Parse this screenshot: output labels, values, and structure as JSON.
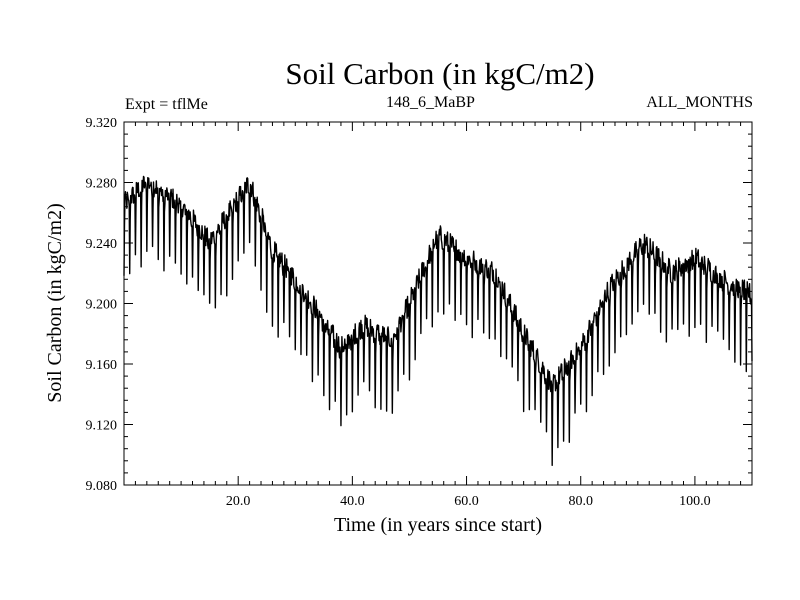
{
  "title": "Soil Carbon (in kgC/m2)",
  "expt_label": "Expt = tflMe",
  "run_label": "148_6_MaBP",
  "months_label": "ALL_MONTHS",
  "chart_data": {
    "type": "line",
    "title": "Soil Carbon (in kgC/m2)",
    "xlabel": "Time (in years since start)",
    "ylabel": "Soil Carbon (in kgC/m2)",
    "xlim": [
      0,
      110
    ],
    "ylim": [
      9.08,
      9.32
    ],
    "grid": false,
    "x_ticks": [
      20,
      40,
      60,
      80,
      100
    ],
    "x_tick_labels": [
      "20.0",
      "40.0",
      "60.0",
      "80.0",
      "100.0"
    ],
    "y_ticks": [
      9.08,
      9.12,
      9.16,
      9.2,
      9.24,
      9.28,
      9.32
    ],
    "y_tick_labels": [
      "9.080",
      "9.120",
      "9.160",
      "9.200",
      "9.240",
      "9.280",
      "9.320"
    ],
    "series": [
      {
        "name": "Soil Carbon",
        "color": "#000000",
        "sampling": "monthly",
        "trend": {
          "years": [
            0,
            4,
            10,
            15,
            22,
            26,
            32,
            38,
            42,
            47,
            50,
            55,
            60,
            65,
            70,
            75,
            80,
            85,
            91,
            96,
            100,
            105,
            110
          ],
          "values": [
            9.255,
            9.27,
            9.255,
            9.23,
            9.27,
            9.225,
            9.195,
            9.16,
            9.175,
            9.165,
            9.19,
            9.235,
            9.22,
            9.21,
            9.17,
            9.135,
            9.16,
            9.2,
            9.23,
            9.21,
            9.22,
            9.205,
            9.195
          ]
        },
        "seasonal_min_offset": -0.034,
        "seasonal_max_offset": 0.018
      }
    ]
  }
}
